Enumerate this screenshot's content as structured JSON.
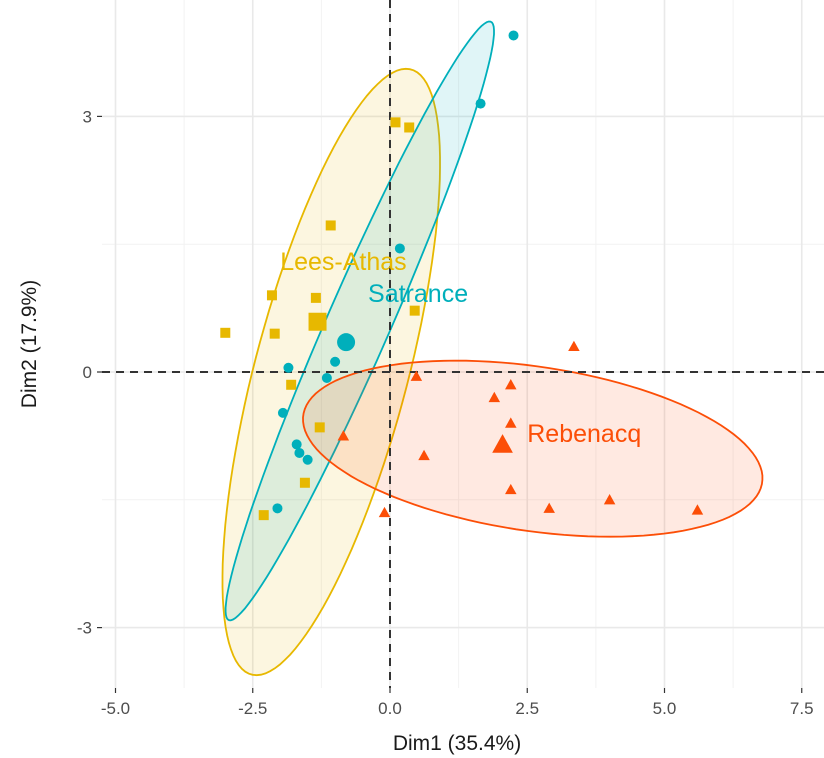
{
  "chart_data": {
    "type": "scatter",
    "title": "",
    "xlabel": "Dim1 (35.4%)",
    "ylabel": "Dim2 (17.9%)",
    "xlim": [
      -5.0,
      7.5
    ],
    "ylim": [
      -3.0,
      3.0
    ],
    "x_ticks": [
      "-5.0",
      "-2.5",
      "0.0",
      "2.5",
      "5.0",
      "7.5"
    ],
    "y_ticks": [
      "-3",
      "0",
      "3"
    ],
    "grid": true,
    "reference_lines": {
      "x": 0,
      "y": 0,
      "style": "dashed"
    },
    "legend": "none",
    "series": [
      {
        "name": "Lees-Athas",
        "color": "#E7B800",
        "marker": "square",
        "label_at": [
          -2.0,
          1.2
        ],
        "centroid": [
          -1.32,
          0.59
        ],
        "ellipse": {
          "center": [
            -1.07,
            0.0
          ],
          "semi_major": 3.85,
          "semi_minor": 1.33,
          "angle_deg": 66
        },
        "points": [
          {
            "x": 0.1,
            "y": 2.93
          },
          {
            "x": 0.35,
            "y": 2.87
          },
          {
            "x": -1.08,
            "y": 1.72
          },
          {
            "x": -2.15,
            "y": 0.9
          },
          {
            "x": -1.35,
            "y": 0.87
          },
          {
            "x": -3.0,
            "y": 0.46
          },
          {
            "x": -2.1,
            "y": 0.45
          },
          {
            "x": 0.45,
            "y": 0.72
          },
          {
            "x": -1.8,
            "y": -0.15
          },
          {
            "x": -1.28,
            "y": -0.65
          },
          {
            "x": -1.55,
            "y": -1.3
          },
          {
            "x": -2.3,
            "y": -1.68
          }
        ]
      },
      {
        "name": "Satrance",
        "color": "#00AFBB",
        "marker": "circle",
        "label_at": [
          -0.4,
          0.82
        ],
        "centroid": [
          -0.8,
          0.35
        ],
        "ellipse": {
          "center": [
            -0.55,
            0.6
          ],
          "semi_major": 4.25,
          "semi_minor": 0.52,
          "angle_deg": 55.5
        },
        "points": [
          {
            "x": 2.25,
            "y": 3.95
          },
          {
            "x": 1.65,
            "y": 3.15
          },
          {
            "x": 0.18,
            "y": 1.45
          },
          {
            "x": -1.0,
            "y": 0.12
          },
          {
            "x": -1.15,
            "y": -0.07
          },
          {
            "x": -1.85,
            "y": 0.05
          },
          {
            "x": -1.95,
            "y": -0.48
          },
          {
            "x": -1.7,
            "y": -0.85
          },
          {
            "x": -1.65,
            "y": -0.95
          },
          {
            "x": -1.5,
            "y": -1.03
          },
          {
            "x": -2.05,
            "y": -1.6
          }
        ]
      },
      {
        "name": "Rebenacq",
        "color": "#FC4E07",
        "marker": "triangle",
        "label_at": [
          2.5,
          -0.82
        ],
        "centroid": [
          2.05,
          -0.85
        ],
        "ellipse": {
          "center": [
            2.6,
            -0.9
          ],
          "semi_major": 4.2,
          "semi_minor": 0.97,
          "angle_deg": -5
        },
        "points": [
          {
            "x": 3.35,
            "y": 0.3
          },
          {
            "x": 0.48,
            "y": -0.05
          },
          {
            "x": 2.2,
            "y": -0.15
          },
          {
            "x": 1.9,
            "y": -0.3
          },
          {
            "x": 2.2,
            "y": -0.6
          },
          {
            "x": -0.85,
            "y": -0.75
          },
          {
            "x": 0.62,
            "y": -0.98
          },
          {
            "x": 2.2,
            "y": -1.38
          },
          {
            "x": 4.0,
            "y": -1.5
          },
          {
            "x": 2.9,
            "y": -1.6
          },
          {
            "x": 5.6,
            "y": -1.62
          },
          {
            "x": -0.1,
            "y": -1.65
          }
        ]
      }
    ]
  }
}
